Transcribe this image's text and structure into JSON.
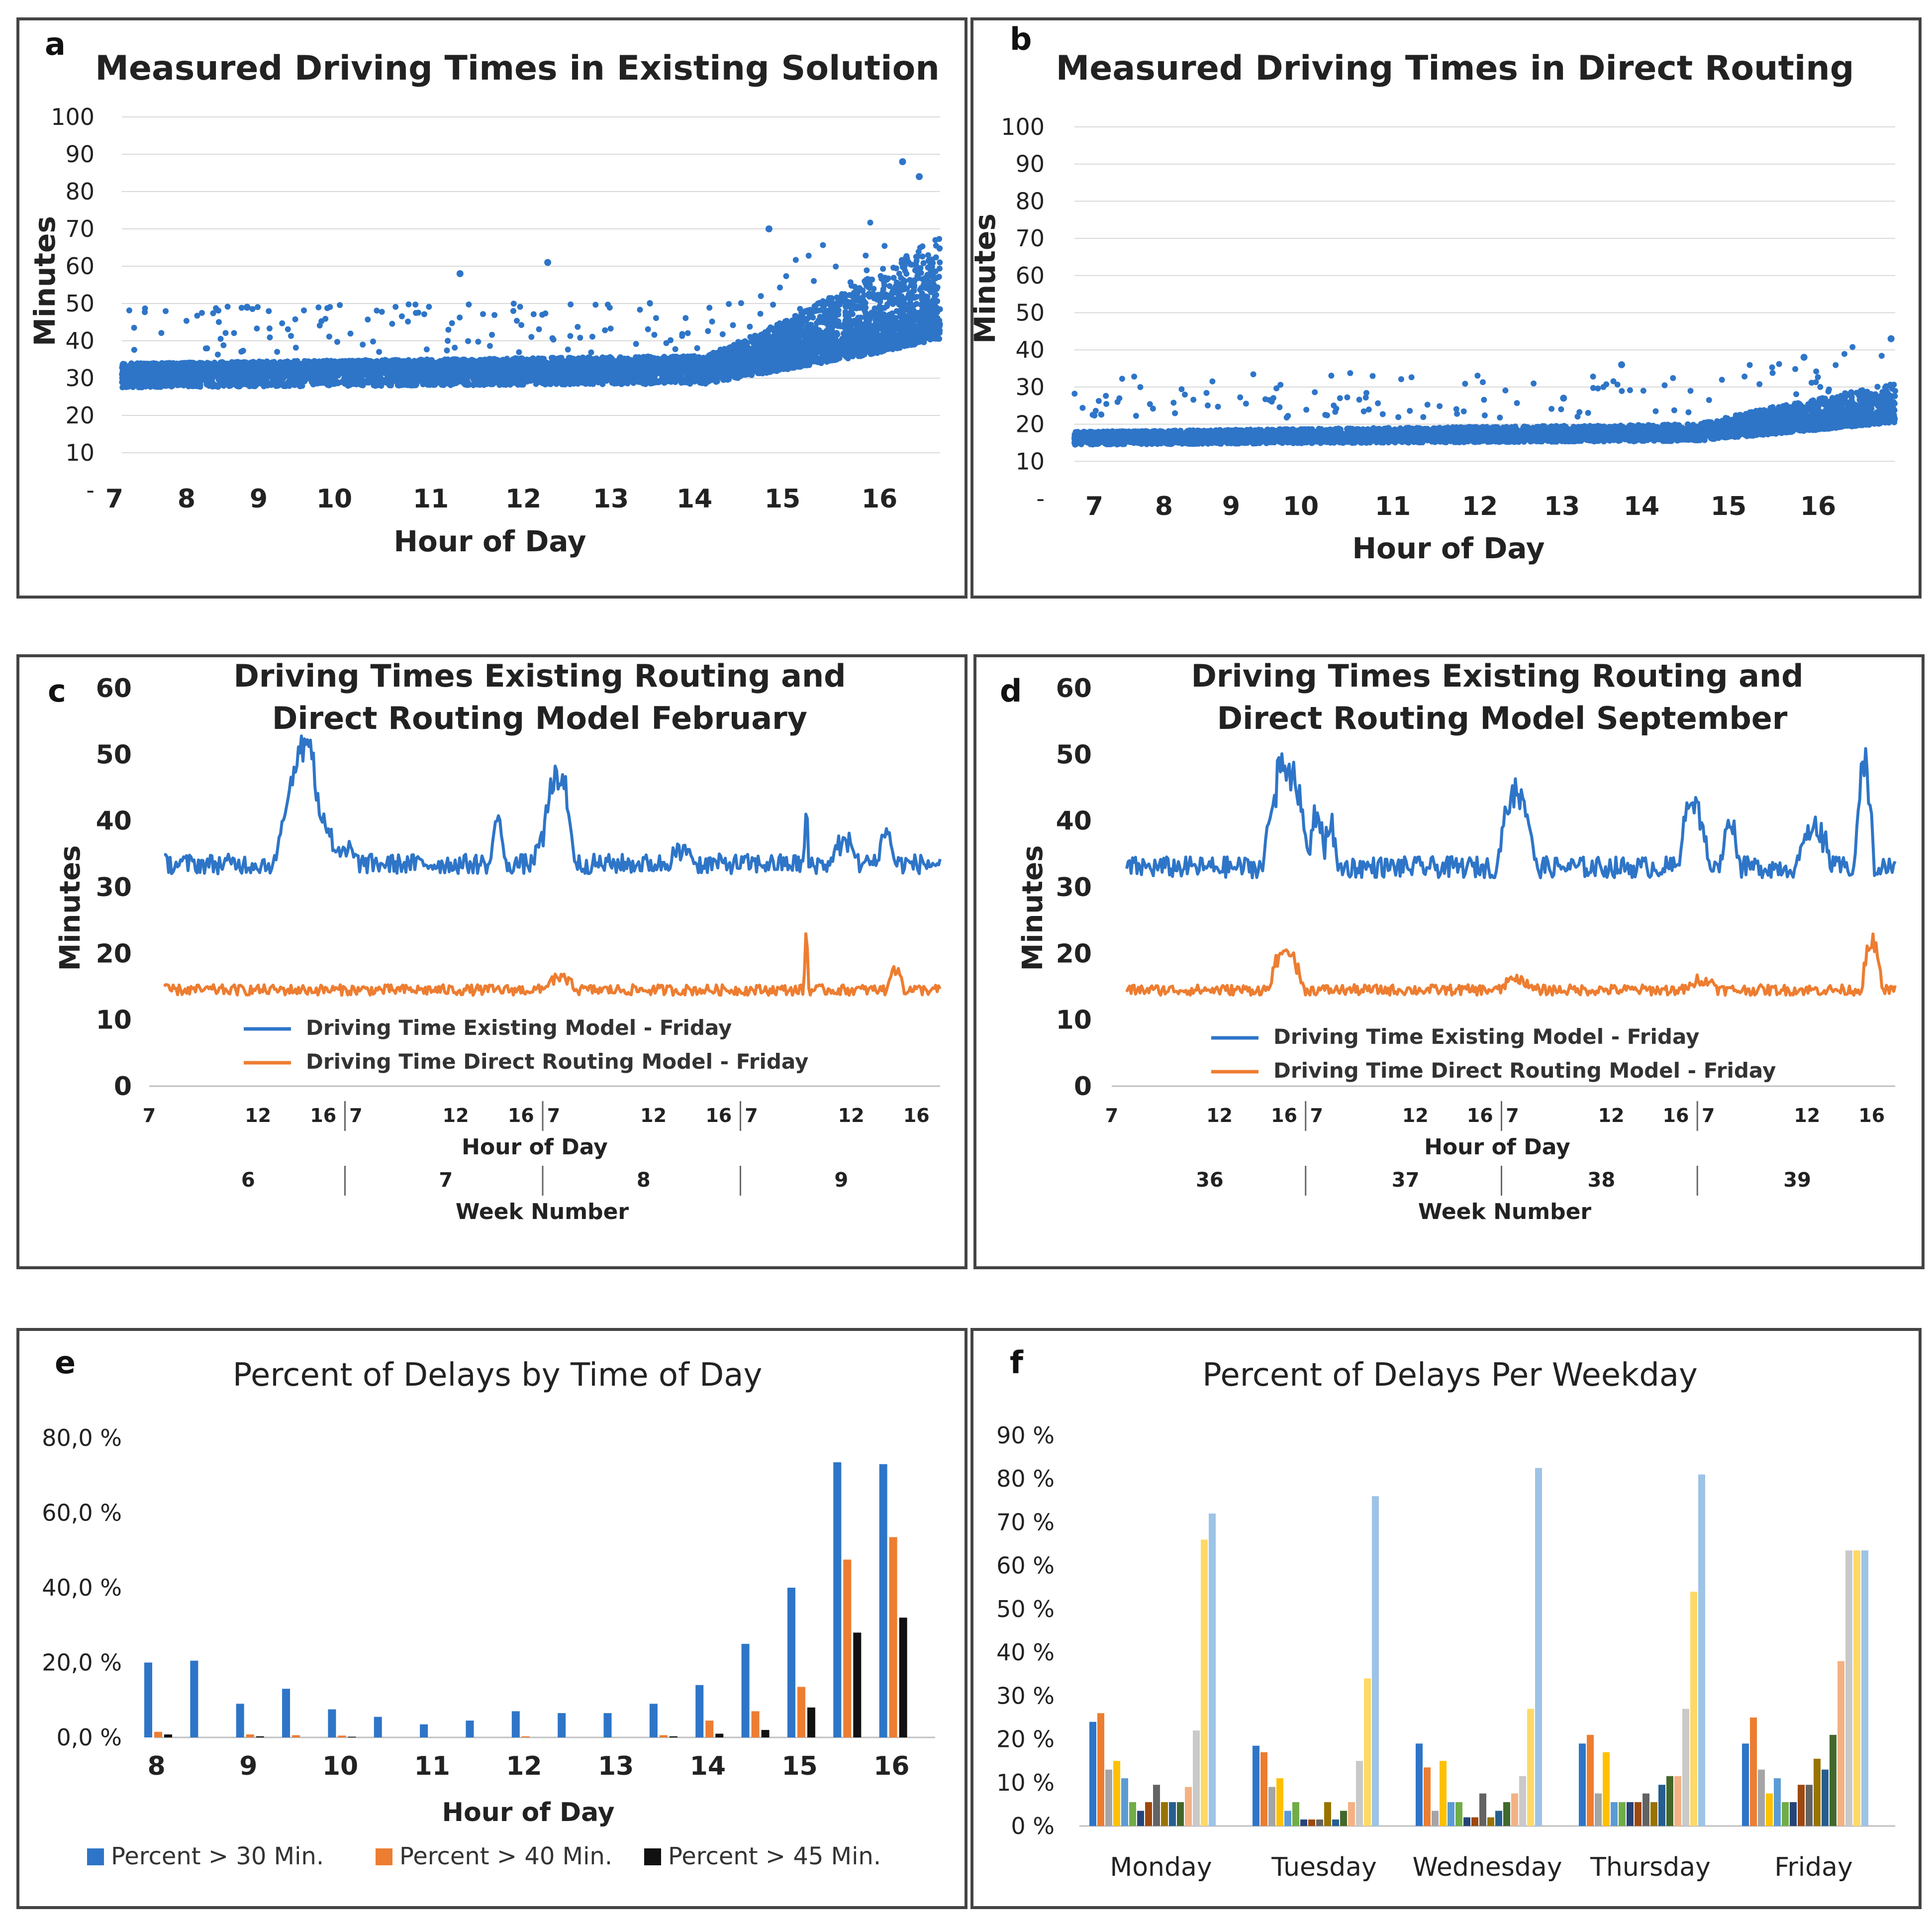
{
  "panels": {
    "a": {
      "letter": "a"
    },
    "b": {
      "letter": "b"
    },
    "c": {
      "letter": "c"
    },
    "d": {
      "letter": "d"
    },
    "e": {
      "letter": "e"
    },
    "f": {
      "letter": "f"
    }
  },
  "chart_data": [
    {
      "id": "a",
      "type": "scatter",
      "title": "Measured Driving Times in Existing Solution",
      "xlabel": "Hour of Day",
      "ylabel": "Minutes",
      "xlim": [
        7,
        16.8
      ],
      "ylim": [
        0,
        100
      ],
      "yticks": [
        "-",
        "10",
        "20",
        "30",
        "40",
        "50",
        "60",
        "70",
        "80",
        "90",
        "100"
      ],
      "xticks": [
        "7",
        "8",
        "9",
        "10",
        "11",
        "12",
        "13",
        "14",
        "15",
        "16"
      ],
      "color": "#2E75C8",
      "series": [
        {
          "name": "Measured driving time",
          "base_by_hour": [
            [
              7,
              31
            ],
            [
              14,
              32
            ],
            [
              15,
              36
            ],
            [
              16,
              40
            ],
            [
              16.8,
              44
            ]
          ],
          "spread_by_hour": [
            [
              7,
              3
            ],
            [
              14,
              4
            ],
            [
              15,
              10
            ],
            [
              16,
              18
            ],
            [
              16.8,
              24
            ]
          ]
        }
      ],
      "notable_points": [
        [
          8.5,
          49
        ],
        [
          11.05,
          58
        ],
        [
          12.1,
          61
        ],
        [
          14.75,
          70
        ],
        [
          16.35,
          88
        ],
        [
          16.55,
          84
        ]
      ]
    },
    {
      "id": "b",
      "type": "scatter",
      "title": "Measured Driving Times in Direct Routing",
      "xlabel": "Hour of Day",
      "ylabel": "Minutes",
      "xlim": [
        7,
        16.9
      ],
      "ylim": [
        0,
        100
      ],
      "yticks": [
        "-",
        "10",
        "20",
        "30",
        "40",
        "50",
        "60",
        "70",
        "80",
        "90",
        "100"
      ],
      "xticks": [
        "7",
        "8",
        "9",
        "10",
        "11",
        "12",
        "13",
        "14",
        "15",
        "16"
      ],
      "color": "#2E75C8",
      "series": [
        {
          "name": "Measured driving time",
          "base_by_hour": [
            [
              7,
              16
            ],
            [
              14.5,
              17
            ],
            [
              15.5,
              19
            ],
            [
              16.9,
              22
            ]
          ],
          "spread_by_hour": [
            [
              7,
              2
            ],
            [
              14.5,
              3
            ],
            [
              15.5,
              6
            ],
            [
              16.9,
              9
            ]
          ]
        }
      ],
      "notable_points": [
        [
          13.6,
          36
        ],
        [
          15.8,
          38
        ],
        [
          16.85,
          43
        ],
        [
          12.9,
          27
        ]
      ]
    },
    {
      "id": "c",
      "type": "line",
      "title": [
        "Driving Times Existing Routing and",
        "Direct Routing Model February"
      ],
      "xlabel": "Hour of Day",
      "ylabel": "Minutes",
      "secondary_xlabel": "Week Number",
      "ylim": [
        0,
        60
      ],
      "yticks": [
        "0",
        "10",
        "20",
        "30",
        "40",
        "50",
        "60"
      ],
      "hour_ticks": [
        "7",
        "12",
        "16",
        "7",
        "12",
        "16",
        "7",
        "12",
        "16",
        "7",
        "12",
        "16"
      ],
      "weeks": [
        "6",
        "7",
        "8",
        "9"
      ],
      "legend": [
        "Driving Time Existing Model - Friday",
        "Driving Time Direct Routing Model - Friday"
      ],
      "series": [
        {
          "name": "Driving Time Existing Model - Friday",
          "color": "#2E75C8",
          "base": 33.5,
          "noise": 1.5,
          "peaks": [
            [
              0.69,
              1.2,
              10
            ],
            [
              0.7,
              1.0,
              8
            ],
            [
              0.78,
              1.0,
              8
            ],
            [
              0.91,
              1.0,
              3
            ],
            [
              1.72,
              0.35,
              8
            ],
            [
              2.04,
              0.8,
              11
            ],
            [
              2.0,
              1.0,
              6
            ],
            [
              2.67,
              0.8,
              2
            ],
            [
              3.31,
              0.12,
              9
            ],
            [
              3.51,
              0.7,
              4
            ],
            [
              3.72,
              0.45,
              6
            ]
          ]
        },
        {
          "name": "Driving Time Direct Routing Model - Friday",
          "color": "#ED7D31",
          "base": 14.5,
          "noise": 0.8,
          "peaks": [
            [
              2.04,
              0.8,
              2
            ],
            [
              3.31,
              0.12,
              10
            ],
            [
              3.77,
              0.45,
              4
            ]
          ]
        }
      ]
    },
    {
      "id": "d",
      "type": "line",
      "title": [
        "Driving Times Existing Routing and",
        "Direct Routing Model September"
      ],
      "xlabel": "Hour of Day",
      "ylabel": "Minutes",
      "secondary_xlabel": "Week Number",
      "ylim": [
        0,
        60
      ],
      "yticks": [
        "0",
        "10",
        "20",
        "30",
        "40",
        "50",
        "60"
      ],
      "hour_ticks": [
        "7",
        "12",
        "16",
        "7",
        "12",
        "16",
        "7",
        "12",
        "16",
        "7",
        "12",
        "16"
      ],
      "weeks": [
        "36",
        "37",
        "38",
        "39"
      ],
      "legend": [
        "Driving Time Existing Model - Friday",
        "Driving Time Direct Routing Model - Friday"
      ],
      "series": [
        {
          "name": "Driving Time Existing Model - Friday",
          "color": "#2E75C8",
          "base": 33,
          "noise": 1.6,
          "peaks": [
            [
              0.83,
              1.2,
              18
            ],
            [
              0.99,
              0.4,
              10
            ],
            [
              1.06,
              0.35,
              8
            ],
            [
              2.03,
              1.0,
              14
            ],
            [
              2.95,
              0.8,
              12
            ],
            [
              3.14,
              0.5,
              8
            ],
            [
              3.58,
              0.9,
              7
            ],
            [
              3.84,
              0.5,
              18
            ]
          ]
        },
        {
          "name": "Driving Time Direct Routing Model - Friday",
          "color": "#ED7D31",
          "base": 14.5,
          "noise": 0.8,
          "peaks": [
            [
              0.83,
              0.9,
              7
            ],
            [
              2.03,
              0.8,
              2
            ],
            [
              3.0,
              0.8,
              2
            ],
            [
              3.88,
              0.55,
              8
            ]
          ]
        }
      ]
    },
    {
      "id": "e",
      "type": "bar",
      "title": "Percent of Delays by Time of Day",
      "xlabel": "Hour of Day",
      "ylim": [
        0,
        80
      ],
      "yticks": [
        "0,0 %",
        "20,0 %",
        "40,0 %",
        "60,0 %",
        "80,0 %"
      ],
      "xticks": [
        "8",
        "9",
        "10",
        "11",
        "12",
        "13",
        "14",
        "15",
        "16"
      ],
      "categories": [
        "8",
        "8.5",
        "9",
        "9.5",
        "10",
        "10.5",
        "11",
        "11.5",
        "12",
        "12.5",
        "13",
        "13.5",
        "14",
        "14.5",
        "15",
        "15.5",
        "16"
      ],
      "series": [
        {
          "name": "Percent > 30 Min.",
          "color": "#2E75C8",
          "values": [
            20,
            20.5,
            9,
            13,
            7.5,
            5.5,
            3.5,
            4.5,
            7,
            6.5,
            6.5,
            9,
            14,
            25,
            40,
            73.5,
            73
          ]
        },
        {
          "name": "Percent > 40 Min.",
          "color": "#ED7D31",
          "values": [
            1.5,
            0,
            0.8,
            0.6,
            0.5,
            0,
            0,
            0,
            0.3,
            0,
            0,
            0.6,
            4.5,
            7,
            13.5,
            47.5,
            53.5
          ]
        },
        {
          "name": "Percent > 45 Min.",
          "color": "#111111",
          "values": [
            0.8,
            0,
            0.3,
            0,
            0.2,
            0,
            0,
            0,
            0,
            0,
            0,
            0.3,
            1,
            2,
            8,
            28,
            32
          ]
        }
      ]
    },
    {
      "id": "f",
      "type": "bar",
      "title": "Percent of Delays Per Weekday",
      "ylim": [
        0,
        90
      ],
      "yticks": [
        "0 %",
        "10 %",
        "20 %",
        "30 %",
        "40 %",
        "50 %",
        "60 %",
        "70 %",
        "80 %",
        "90 %"
      ],
      "categories": [
        "Monday",
        "Tuesday",
        "Wednesday",
        "Thursday",
        "Friday"
      ],
      "bar_colors": [
        "#2E75C8",
        "#ED7D31",
        "#A5A5A5",
        "#FFC000",
        "#5B9BD5",
        "#70AD47",
        "#264478",
        "#9E480E",
        "#636363",
        "#997300",
        "#255E91",
        "#43682B",
        "#F4B183",
        "#C9C9C9",
        "#FFD966",
        "#9DC3E6"
      ],
      "values": {
        "Monday": [
          24,
          26,
          13,
          15,
          11,
          5.5,
          3.5,
          5.5,
          9.5,
          5.5,
          5.5,
          5.5,
          9,
          22,
          66,
          72
        ],
        "Tuesday": [
          18.5,
          17,
          9,
          11,
          3.5,
          5.5,
          1.5,
          1.5,
          1.5,
          5.5,
          1.5,
          3.5,
          5.5,
          15,
          34,
          76
        ],
        "Wednesday": [
          19,
          13.5,
          3.5,
          15,
          5.5,
          5.5,
          2,
          2,
          7.5,
          2,
          3.5,
          5.5,
          7.5,
          11.5,
          27,
          82.5
        ],
        "Thursday": [
          19,
          21,
          7.5,
          17,
          5.5,
          5.5,
          5.5,
          5.5,
          7.5,
          5.5,
          9.5,
          11.5,
          11.5,
          27,
          54,
          81
        ],
        "Friday": [
          19,
          25,
          13,
          7.5,
          11,
          5.5,
          5.5,
          9.5,
          9.5,
          15.5,
          13,
          21,
          38,
          63.5,
          63.5,
          63.5
        ]
      }
    }
  ]
}
